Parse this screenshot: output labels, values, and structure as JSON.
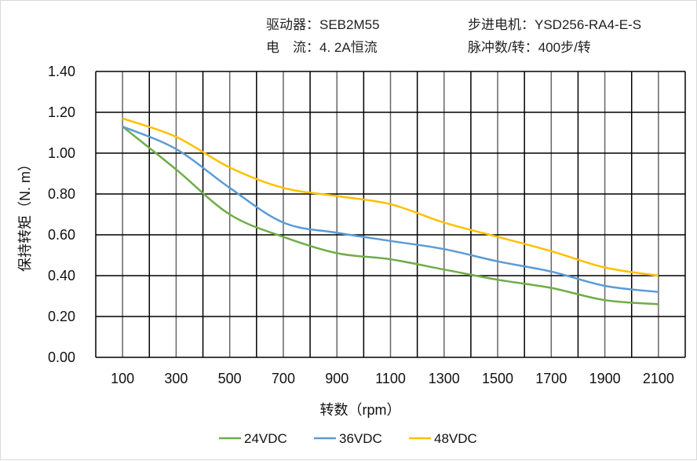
{
  "header": {
    "driver": "驱动器：SEB2M55",
    "current": "电　流：4. 2A恒流",
    "motor": "步进电机：YSD256-RA4-E-S",
    "pulses": "脉冲数/转：400步/转"
  },
  "chart_data": {
    "type": "line",
    "title": "",
    "xlabel": "转数（rpm）",
    "ylabel": "保持转矩（N. m）",
    "x": [
      100,
      300,
      500,
      700,
      900,
      1100,
      1300,
      1500,
      1700,
      1900,
      2100
    ],
    "xlim": [
      0,
      2200
    ],
    "ylim": [
      0,
      1.4
    ],
    "xticks": [
      "100",
      "300",
      "500",
      "700",
      "900",
      "1100",
      "1300",
      "1500",
      "1700",
      "1900",
      "2100"
    ],
    "yticks": [
      "0.00",
      "0.20",
      "0.40",
      "0.60",
      "0.80",
      "1.00",
      "1.20",
      "1.40"
    ],
    "grid": true,
    "legend": "bottom",
    "series": [
      {
        "name": "24VDC",
        "color": "#70ad47",
        "values": [
          1.13,
          0.92,
          0.7,
          0.59,
          0.51,
          0.48,
          0.43,
          0.38,
          0.34,
          0.28,
          0.26
        ]
      },
      {
        "name": "36VDC",
        "color": "#5b9bd5",
        "values": [
          1.13,
          1.02,
          0.83,
          0.66,
          0.61,
          0.57,
          0.53,
          0.47,
          0.42,
          0.35,
          0.32
        ]
      },
      {
        "name": "48VDC",
        "color": "#ffc000",
        "values": [
          1.17,
          1.08,
          0.93,
          0.83,
          0.79,
          0.75,
          0.66,
          0.59,
          0.52,
          0.44,
          0.4
        ]
      }
    ]
  }
}
